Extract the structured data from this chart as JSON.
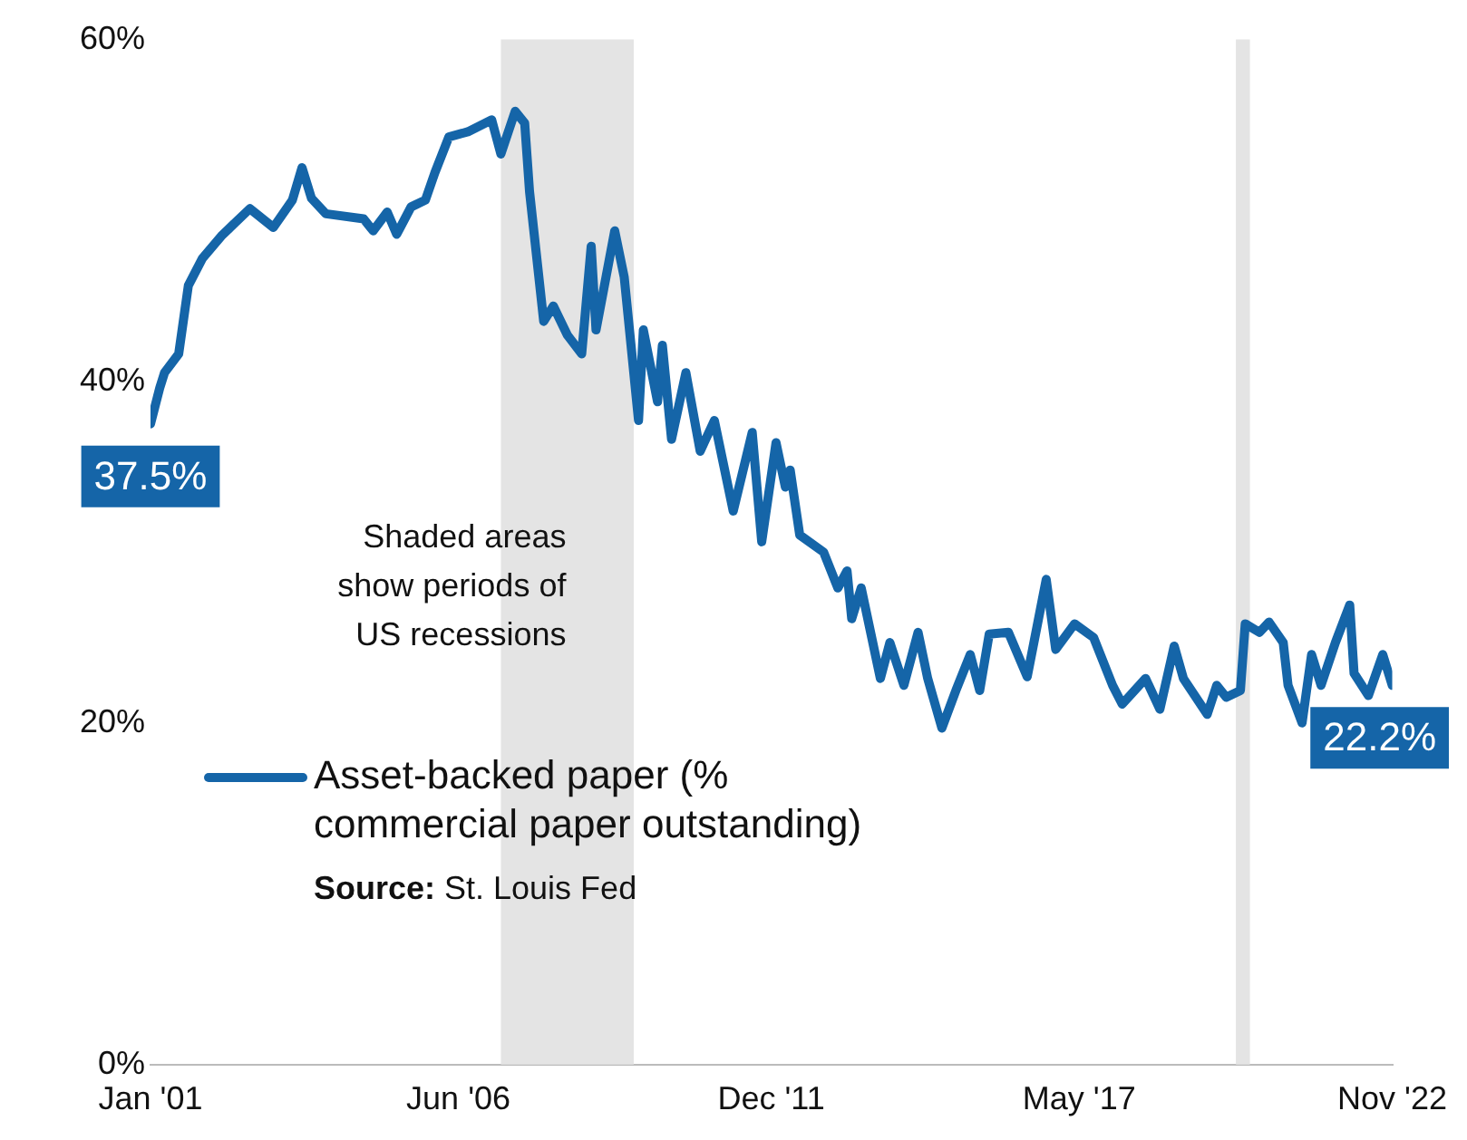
{
  "chart_data": {
    "type": "line",
    "xlim": [
      "2001-01",
      "2022-11"
    ],
    "ylim": [
      0,
      60
    ],
    "xticks": [
      {
        "value": "2001-01",
        "label": "Jan '01"
      },
      {
        "value": "2006-06",
        "label": "Jun '06"
      },
      {
        "value": "2011-12",
        "label": "Dec '11"
      },
      {
        "value": "2017-05",
        "label": "May '17"
      },
      {
        "value": "2022-11",
        "label": "Nov '22"
      }
    ],
    "yticks": [
      {
        "value": 0,
        "label": "0%"
      },
      {
        "value": 20,
        "label": "20%"
      },
      {
        "value": 40,
        "label": "40%"
      },
      {
        "value": 60,
        "label": "60%"
      }
    ],
    "grid": false,
    "legend": "left",
    "marker": "none",
    "line_style": "solid",
    "bands": [
      {
        "axis": "x",
        "from": "2007-03",
        "to": "2009-07",
        "color": "#e4e4e4"
      },
      {
        "axis": "x",
        "from": "2020-02",
        "to": "2020-05",
        "color": "#e4e4e4"
      }
    ],
    "annotations": [
      {
        "text": "37.5%",
        "x": "2001-01",
        "y": 37.5
      },
      {
        "text": "22.2%",
        "x": "2022-11",
        "y": 22.2
      },
      "Shaded areas show periods of US recessions",
      "Source: St. Louis Fed"
    ],
    "series": [
      {
        "name": "Asset-backed paper (% commercial paper outstanding)",
        "color": "#1565a8",
        "x": [
          "2001-01",
          "2001-03",
          "2001-04",
          "2001-07",
          "2001-09",
          "2001-12",
          "2002-04",
          "2002-10",
          "2003-03",
          "2003-07",
          "2003-09",
          "2003-11",
          "2004-02",
          "2004-10",
          "2004-12",
          "2005-03",
          "2005-05",
          "2005-08",
          "2005-11",
          "2006-01",
          "2006-04",
          "2006-08",
          "2007-01",
          "2007-03",
          "2007-06",
          "2007-08",
          "2007-09",
          "2007-12",
          "2008-02",
          "2008-05",
          "2008-08",
          "2008-10",
          "2008-11",
          "2009-03",
          "2009-05",
          "2009-08",
          "2009-09",
          "2009-12",
          "2010-01",
          "2010-03",
          "2010-06",
          "2010-09",
          "2010-12",
          "2011-04",
          "2011-08",
          "2011-10",
          "2012-01",
          "2012-03",
          "2012-04",
          "2012-06",
          "2012-11",
          "2013-02",
          "2013-04",
          "2013-05",
          "2013-07",
          "2013-11",
          "2014-01",
          "2014-04",
          "2014-07",
          "2014-09",
          "2014-12",
          "2015-03",
          "2015-06",
          "2015-08",
          "2015-10",
          "2016-02",
          "2016-06",
          "2016-10",
          "2016-12",
          "2017-04",
          "2017-08",
          "2017-12",
          "2018-02",
          "2018-07",
          "2018-10",
          "2019-01",
          "2019-03",
          "2019-08",
          "2019-10",
          "2019-12",
          "2020-03",
          "2020-04",
          "2020-07",
          "2020-09",
          "2020-12",
          "2021-01",
          "2021-04",
          "2021-06",
          "2021-08",
          "2021-11",
          "2022-02",
          "2022-03",
          "2022-06",
          "2022-09",
          "2022-11"
        ],
        "values": [
          37.5,
          39.6,
          40.5,
          41.6,
          45.6,
          47.2,
          48.5,
          50.1,
          49.0,
          50.6,
          52.5,
          50.7,
          49.8,
          49.5,
          48.8,
          49.9,
          48.6,
          50.2,
          50.6,
          52.2,
          54.3,
          54.6,
          55.3,
          53.3,
          55.8,
          55.1,
          51.1,
          43.5,
          44.4,
          42.7,
          41.6,
          47.9,
          43.0,
          48.8,
          46.1,
          37.7,
          43.0,
          38.8,
          42.1,
          36.6,
          40.5,
          35.9,
          37.7,
          32.4,
          37.0,
          30.6,
          36.4,
          33.8,
          34.8,
          31.0,
          30.0,
          27.9,
          28.9,
          26.1,
          27.9,
          22.6,
          24.7,
          22.2,
          25.3,
          22.6,
          19.7,
          21.9,
          24.0,
          21.9,
          25.2,
          25.3,
          22.7,
          28.4,
          24.3,
          25.8,
          25.0,
          22.2,
          21.1,
          22.6,
          20.8,
          24.5,
          22.6,
          20.5,
          22.2,
          21.5,
          21.9,
          25.8,
          25.3,
          25.9,
          24.7,
          22.2,
          20.0,
          24.0,
          22.2,
          24.7,
          26.9,
          22.9,
          21.6,
          24.0,
          22.2
        ]
      }
    ]
  }
}
